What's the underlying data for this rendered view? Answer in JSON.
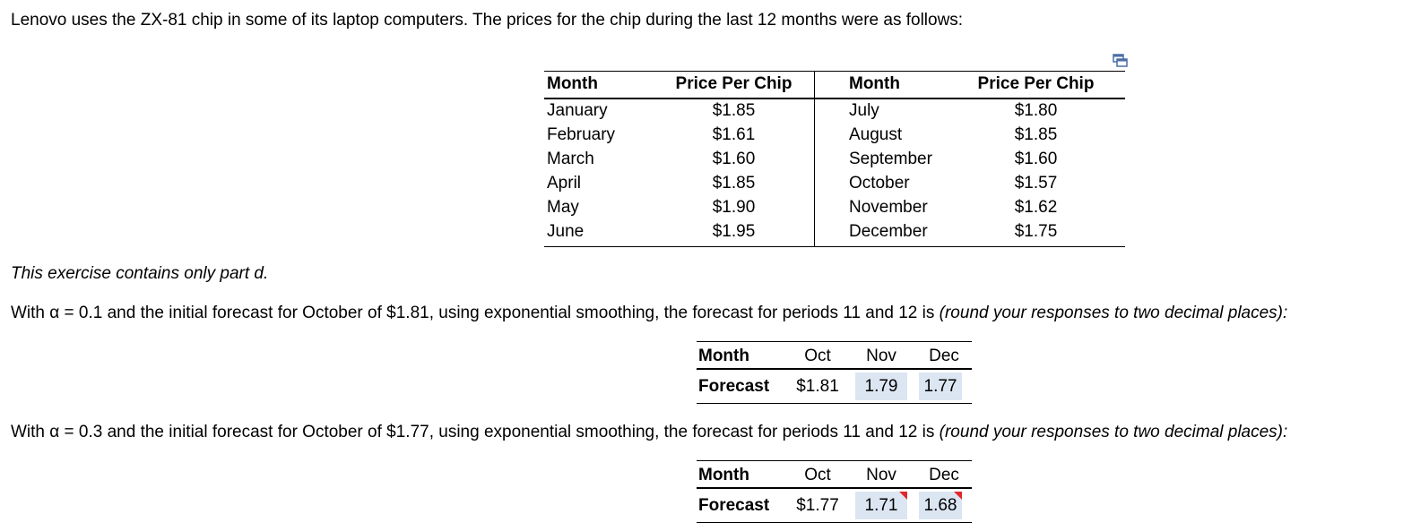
{
  "intro": "Lenovo uses the ZX-81 chip in some of its laptop computers.  The prices for the chip during the last 12 months were as follows:",
  "price_table": {
    "headers": [
      "Month",
      "Price Per Chip",
      "Month",
      "Price Per Chip"
    ],
    "left": [
      {
        "month": "January",
        "price": "$1.85"
      },
      {
        "month": "February",
        "price": "$1.61"
      },
      {
        "month": "March",
        "price": "$1.60"
      },
      {
        "month": "April",
        "price": "$1.85"
      },
      {
        "month": "May",
        "price": "$1.90"
      },
      {
        "month": "June",
        "price": "$1.95"
      }
    ],
    "right": [
      {
        "month": "July",
        "price": "$1.80"
      },
      {
        "month": "August",
        "price": "$1.85"
      },
      {
        "month": "September",
        "price": "$1.60"
      },
      {
        "month": "October",
        "price": "$1.57"
      },
      {
        "month": "November",
        "price": "$1.62"
      },
      {
        "month": "December",
        "price": "$1.75"
      }
    ]
  },
  "note": "This exercise contains only part d.",
  "question1": {
    "text": "With α = 0.1 and the initial forecast for October of $1.81, using exponential smoothing, the forecast for periods 11 and 12 is ",
    "hint": "(round your responses to two decimal places):"
  },
  "forecast1": {
    "row_labels": [
      "Month",
      "Forecast"
    ],
    "months": [
      "Oct",
      "Nov",
      "Dec"
    ],
    "oct_value": "$1.81",
    "nov_input": "1.79",
    "dec_input": "1.77"
  },
  "question2": {
    "text": "With α = 0.3 and the initial forecast for October of $1.77, using exponential smoothing, the forecast for periods 11 and 12 is ",
    "hint": "(round your responses to two decimal places):"
  },
  "forecast2": {
    "row_labels": [
      "Month",
      "Forecast"
    ],
    "months": [
      "Oct",
      "Nov",
      "Dec"
    ],
    "oct_value": "$1.77",
    "nov_input": "1.71",
    "dec_input": "1.68"
  },
  "icons": {
    "popout": "popout-icon",
    "incorrect_flag": "incorrect-flag-icon"
  },
  "colors": {
    "input_background": "#dce6f2",
    "incorrect_flag": "#e0282a"
  }
}
